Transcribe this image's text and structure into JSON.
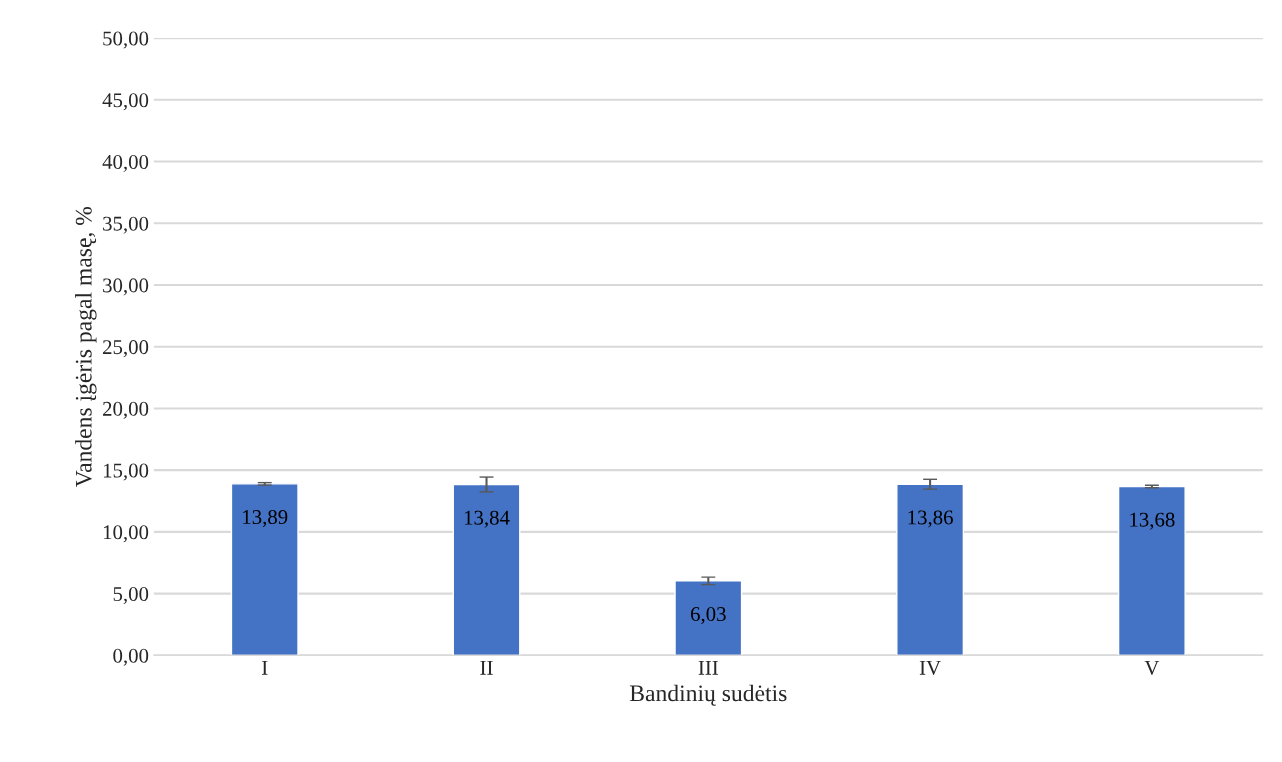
{
  "chart_data": {
    "type": "bar",
    "xlabel": "Bandinių sudėtis",
    "ylabel": "Vandens įgėris pagal masę, %",
    "categories": [
      "I",
      "II",
      "III",
      "IV",
      "V"
    ],
    "values": [
      13.89,
      13.84,
      6.03,
      13.86,
      13.68
    ],
    "errors": [
      0.1,
      0.6,
      0.3,
      0.4,
      0.1
    ],
    "value_labels": [
      "13,89",
      "13,84",
      "6,03",
      "13,86",
      "13,68"
    ],
    "color": "#4472c4",
    "ylim": [
      0,
      50
    ],
    "yticks": [
      {
        "value": 0,
        "label": "0,00"
      },
      {
        "value": 5,
        "label": "5,00"
      },
      {
        "value": 10,
        "label": "10,00"
      },
      {
        "value": 15,
        "label": "15,00"
      },
      {
        "value": 20,
        "label": "20,00"
      },
      {
        "value": 25,
        "label": "25,00"
      },
      {
        "value": 30,
        "label": "30,00"
      },
      {
        "value": 35,
        "label": "35,00"
      },
      {
        "value": 40,
        "label": "40,00"
      },
      {
        "value": 45,
        "label": "45,00"
      },
      {
        "value": 50,
        "label": "50,00"
      }
    ],
    "grid": "y"
  }
}
